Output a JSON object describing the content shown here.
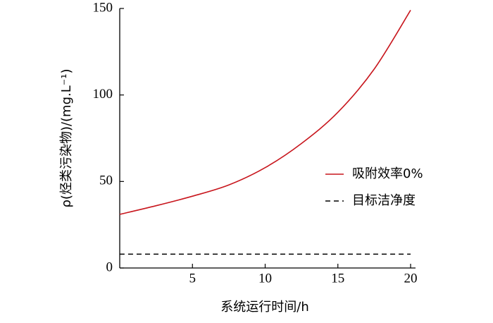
{
  "chart_data": {
    "type": "line",
    "ylabel": "ρ(烃类污染物)/(mg.L⁻¹)",
    "xlabel": "系统运行时间/h",
    "x": [
      0,
      2.5,
      5,
      7.5,
      10,
      12.5,
      15,
      17.5,
      20
    ],
    "series": [
      {
        "name": "吸附效率0%",
        "color": "#c8161d",
        "linestyle": "solid",
        "values": [
          31,
          36,
          41.5,
          48,
          58,
          72,
          90,
          115,
          149
        ]
      },
      {
        "name": "目标洁净度",
        "color": "#000000",
        "linestyle": "dashed",
        "values": [
          8,
          8,
          8,
          8,
          8,
          8,
          8,
          8,
          8
        ]
      }
    ],
    "xlim": [
      0,
      20
    ],
    "xticks": [
      5,
      10,
      15,
      20
    ],
    "ylim": [
      0,
      150
    ],
    "yticks": [
      0,
      50,
      100,
      150
    ],
    "legend": "right"
  }
}
